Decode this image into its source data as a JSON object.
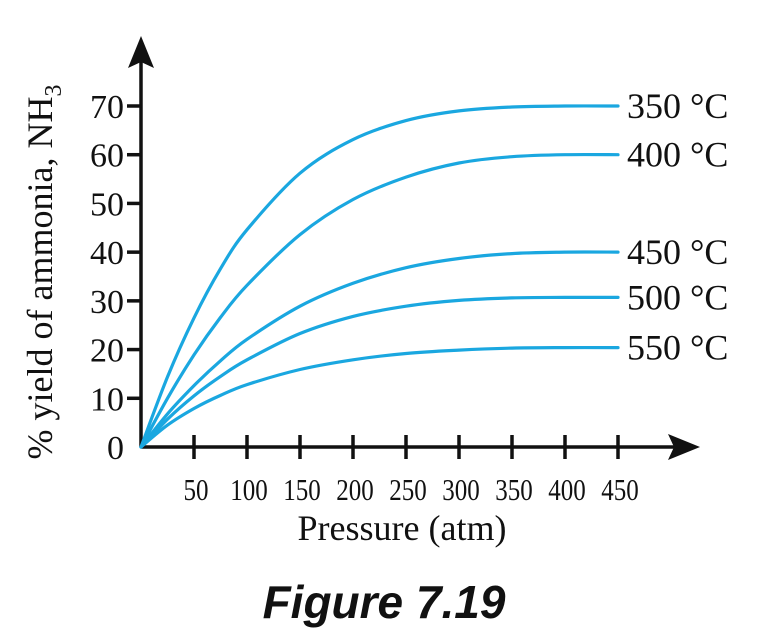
{
  "figure_caption": "Figure 7.19",
  "colors": {
    "curve": "#1aa7e0",
    "axis": "#111111"
  },
  "chart_data": {
    "type": "line",
    "xlabel": "Pressure (atm)",
    "ylabel": "% yield of ammonia, NH",
    "ylabel_sub": "3",
    "xlim": [
      0,
      500
    ],
    "ylim": [
      0,
      80
    ],
    "x_ticks": [
      50,
      100,
      150,
      200,
      250,
      300,
      350,
      400,
      450
    ],
    "y_ticks": [
      0,
      10,
      20,
      30,
      40,
      50,
      60,
      70
    ],
    "grid": false,
    "legend": "none",
    "x": [
      0,
      25,
      50,
      75,
      100,
      150,
      200,
      250,
      300,
      350,
      400,
      450
    ],
    "series": [
      {
        "name": "350 °C",
        "values": [
          0,
          14.4,
          26.5,
          36.6,
          44.6,
          56.2,
          63.1,
          67.0,
          69.0,
          69.8,
          70.0,
          70.0
        ]
      },
      {
        "name": "400 °C",
        "values": [
          0,
          10.0,
          18.9,
          26.6,
          33.2,
          43.6,
          50.8,
          55.4,
          58.3,
          59.6,
          60.0,
          60.0
        ]
      },
      {
        "name": "450 °C",
        "values": [
          0,
          6.8,
          12.6,
          17.7,
          22.1,
          28.9,
          33.6,
          36.8,
          38.7,
          39.7,
          40.0,
          40.0
        ]
      },
      {
        "name": "500 °C",
        "values": [
          0,
          5.7,
          10.5,
          14.5,
          17.9,
          23.3,
          26.8,
          28.9,
          30.1,
          30.6,
          30.7,
          30.7
        ]
      },
      {
        "name": "550 °C",
        "values": [
          0,
          4.5,
          7.9,
          10.6,
          12.8,
          15.9,
          17.9,
          19.2,
          19.9,
          20.3,
          20.4,
          20.4
        ]
      }
    ]
  }
}
